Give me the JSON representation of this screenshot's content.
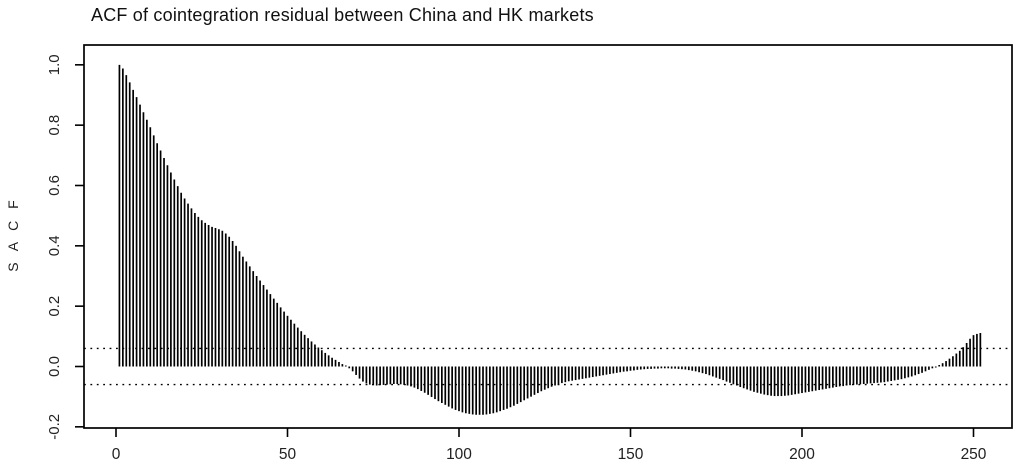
{
  "chart_data": {
    "type": "bar",
    "title": "ACF of cointegration residual between China and HK markets",
    "ylabel": "S A C F",
    "xlabel": "",
    "legend": "none",
    "grid": "off",
    "bar_color": "#000000",
    "x_ticks": [
      0,
      50,
      100,
      150,
      200,
      250
    ],
    "y_tick_labels": [
      "-0.2",
      "0.0",
      "0.2",
      "0.4",
      "0.6",
      "0.8",
      "1.0"
    ],
    "ylim": [
      -0.21,
      1.06
    ],
    "xlim": [
      0,
      262
    ],
    "confidence_bands": {
      "upper": 0.06,
      "lower": -0.06,
      "style": "dotted"
    },
    "lag_start": 1,
    "values": [
      1.0,
      0.988,
      0.966,
      0.942,
      0.917,
      0.893,
      0.868,
      0.843,
      0.818,
      0.793,
      0.766,
      0.74,
      0.716,
      0.691,
      0.667,
      0.643,
      0.62,
      0.598,
      0.576,
      0.557,
      0.54,
      0.524,
      0.509,
      0.496,
      0.485,
      0.476,
      0.469,
      0.463,
      0.459,
      0.455,
      0.45,
      0.441,
      0.43,
      0.416,
      0.4,
      0.382,
      0.364,
      0.348,
      0.332,
      0.316,
      0.3,
      0.285,
      0.27,
      0.255,
      0.24,
      0.225,
      0.211,
      0.196,
      0.182,
      0.168,
      0.155,
      0.142,
      0.129,
      0.117,
      0.105,
      0.094,
      0.083,
      0.073,
      0.063,
      0.054,
      0.045,
      0.037,
      0.029,
      0.022,
      0.015,
      0.008,
      0.002,
      -0.006,
      -0.016,
      -0.028,
      -0.04,
      -0.05,
      -0.056,
      -0.06,
      -0.062,
      -0.063,
      -0.062,
      -0.061,
      -0.06,
      -0.059,
      -0.058,
      -0.058,
      -0.059,
      -0.061,
      -0.063,
      -0.066,
      -0.07,
      -0.075,
      -0.081,
      -0.087,
      -0.094,
      -0.101,
      -0.108,
      -0.115,
      -0.121,
      -0.127,
      -0.133,
      -0.139,
      -0.144,
      -0.148,
      -0.152,
      -0.155,
      -0.157,
      -0.159,
      -0.16,
      -0.16,
      -0.16,
      -0.159,
      -0.157,
      -0.155,
      -0.152,
      -0.148,
      -0.144,
      -0.14,
      -0.135,
      -0.13,
      -0.124,
      -0.118,
      -0.112,
      -0.106,
      -0.1,
      -0.094,
      -0.088,
      -0.082,
      -0.077,
      -0.072,
      -0.067,
      -0.063,
      -0.059,
      -0.055,
      -0.052,
      -0.049,
      -0.047,
      -0.045,
      -0.043,
      -0.041,
      -0.039,
      -0.037,
      -0.035,
      -0.033,
      -0.031,
      -0.029,
      -0.027,
      -0.025,
      -0.023,
      -0.021,
      -0.019,
      -0.017,
      -0.016,
      -0.014,
      -0.013,
      -0.011,
      -0.01,
      -0.009,
      -0.008,
      -0.008,
      -0.007,
      -0.007,
      -0.006,
      -0.006,
      -0.006,
      -0.007,
      -0.007,
      -0.008,
      -0.009,
      -0.01,
      -0.012,
      -0.014,
      -0.016,
      -0.019,
      -0.022,
      -0.025,
      -0.029,
      -0.033,
      -0.037,
      -0.041,
      -0.045,
      -0.05,
      -0.054,
      -0.059,
      -0.063,
      -0.068,
      -0.072,
      -0.076,
      -0.08,
      -0.084,
      -0.087,
      -0.09,
      -0.093,
      -0.095,
      -0.097,
      -0.098,
      -0.098,
      -0.098,
      -0.097,
      -0.096,
      -0.094,
      -0.092,
      -0.09,
      -0.088,
      -0.086,
      -0.084,
      -0.082,
      -0.08,
      -0.078,
      -0.076,
      -0.074,
      -0.072,
      -0.07,
      -0.068,
      -0.066,
      -0.065,
      -0.063,
      -0.062,
      -0.061,
      -0.06,
      -0.059,
      -0.058,
      -0.057,
      -0.056,
      -0.055,
      -0.054,
      -0.053,
      -0.052,
      -0.05,
      -0.048,
      -0.046,
      -0.044,
      -0.042,
      -0.039,
      -0.036,
      -0.033,
      -0.029,
      -0.025,
      -0.021,
      -0.016,
      -0.011,
      -0.006,
      -0.001,
      0.005,
      0.011,
      0.018,
      0.026,
      0.034,
      0.043,
      0.052,
      0.064,
      0.078,
      0.092,
      0.104,
      0.108,
      0.111
    ]
  }
}
